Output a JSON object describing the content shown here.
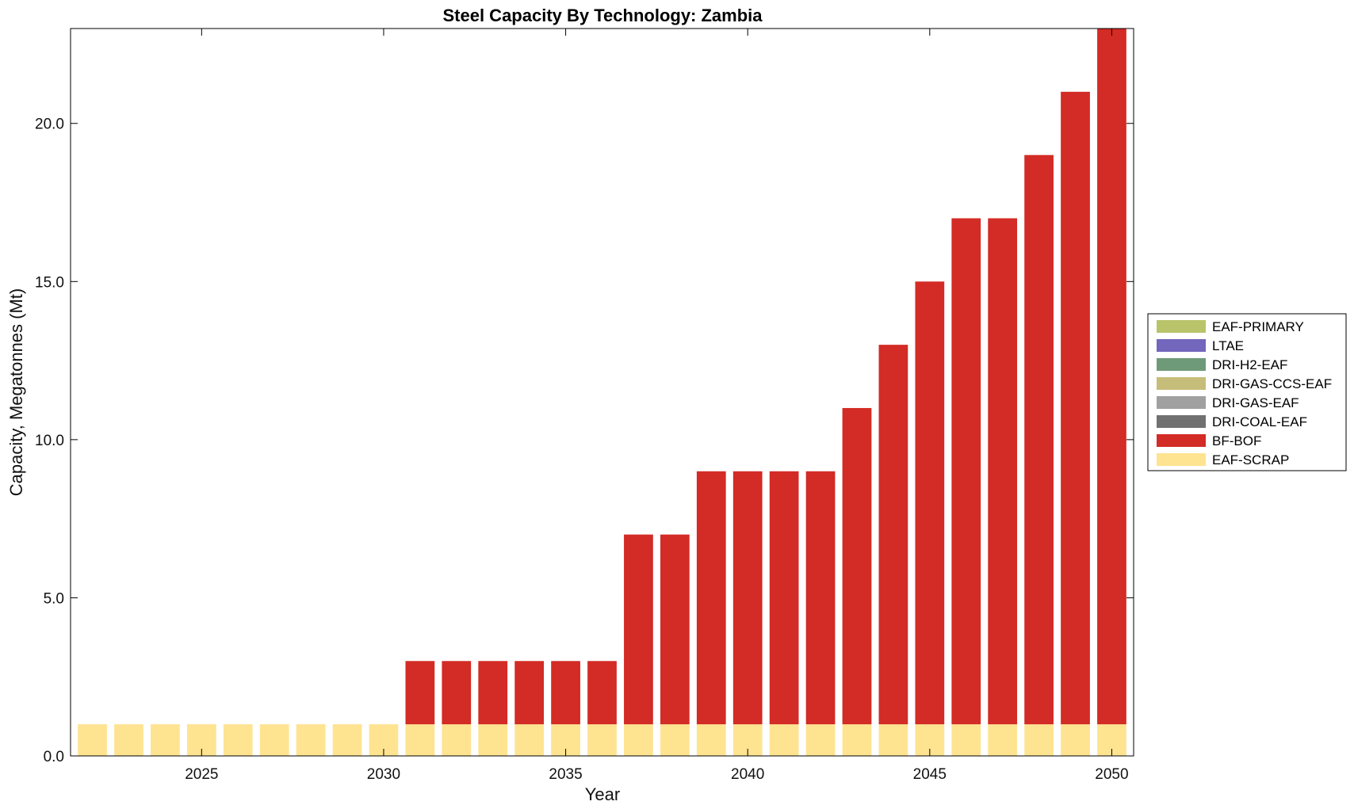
{
  "chart_data": {
    "type": "bar",
    "stacked": true,
    "title": "Steel Capacity By Technology: Zambia",
    "xlabel": "Year",
    "ylabel": "Capacity, Megatonnes (Mt)",
    "x": [
      2022,
      2023,
      2024,
      2025,
      2026,
      2027,
      2028,
      2029,
      2030,
      2031,
      2032,
      2033,
      2034,
      2035,
      2036,
      2037,
      2038,
      2039,
      2040,
      2041,
      2042,
      2043,
      2044,
      2045,
      2046,
      2047,
      2048,
      2049,
      2050
    ],
    "xlim": [
      2021.4,
      2050.6
    ],
    "ylim": [
      0,
      23
    ],
    "xticks": [
      2025,
      2030,
      2035,
      2040,
      2045,
      2050
    ],
    "yticks": [
      0,
      5,
      10,
      15,
      20
    ],
    "ytick_labels": [
      "0.0",
      "5.0",
      "10.0",
      "15.0",
      "20.0"
    ],
    "grid": false,
    "legend_position": "right",
    "series": [
      {
        "name": "EAF-SCRAP",
        "color": "#fee391",
        "values": [
          1,
          1,
          1,
          1,
          1,
          1,
          1,
          1,
          1,
          1,
          1,
          1,
          1,
          1,
          1,
          1,
          1,
          1,
          1,
          1,
          1,
          1,
          1,
          1,
          1,
          1,
          1,
          1,
          1
        ]
      },
      {
        "name": "BF-BOF",
        "color": "#d32b25",
        "values": [
          0,
          0,
          0,
          0,
          0,
          0,
          0,
          0,
          0,
          2,
          2,
          2,
          2,
          2,
          2,
          6,
          6,
          8,
          8,
          8,
          8,
          10,
          12,
          14,
          16,
          16,
          18,
          20,
          22
        ]
      },
      {
        "name": "DRI-COAL-EAF",
        "color": "#707070",
        "values": [
          0,
          0,
          0,
          0,
          0,
          0,
          0,
          0,
          0,
          0,
          0,
          0,
          0,
          0,
          0,
          0,
          0,
          0,
          0,
          0,
          0,
          0,
          0,
          0,
          0,
          0,
          0,
          0,
          0
        ]
      },
      {
        "name": "DRI-GAS-EAF",
        "color": "#a0a0a0",
        "values": [
          0,
          0,
          0,
          0,
          0,
          0,
          0,
          0,
          0,
          0,
          0,
          0,
          0,
          0,
          0,
          0,
          0,
          0,
          0,
          0,
          0,
          0,
          0,
          0,
          0,
          0,
          0,
          0,
          0
        ]
      },
      {
        "name": "DRI-GAS-CCS-EAF",
        "color": "#c7bd7a",
        "values": [
          0,
          0,
          0,
          0,
          0,
          0,
          0,
          0,
          0,
          0,
          0,
          0,
          0,
          0,
          0,
          0,
          0,
          0,
          0,
          0,
          0,
          0,
          0,
          0,
          0,
          0,
          0,
          0,
          0
        ]
      },
      {
        "name": "DRI-H2-EAF",
        "color": "#6f9a79",
        "values": [
          0,
          0,
          0,
          0,
          0,
          0,
          0,
          0,
          0,
          0,
          0,
          0,
          0,
          0,
          0,
          0,
          0,
          0,
          0,
          0,
          0,
          0,
          0,
          0,
          0,
          0,
          0,
          0,
          0
        ]
      },
      {
        "name": "LTAE",
        "color": "#7366bd",
        "values": [
          0,
          0,
          0,
          0,
          0,
          0,
          0,
          0,
          0,
          0,
          0,
          0,
          0,
          0,
          0,
          0,
          0,
          0,
          0,
          0,
          0,
          0,
          0,
          0,
          0,
          0,
          0,
          0,
          0
        ]
      },
      {
        "name": "EAF-PRIMARY",
        "color": "#b9c46a",
        "values": [
          0,
          0,
          0,
          0,
          0,
          0,
          0,
          0,
          0,
          0,
          0,
          0,
          0,
          0,
          0,
          0,
          0,
          0,
          0,
          0,
          0,
          0,
          0,
          0,
          0,
          0,
          0,
          0,
          0
        ]
      }
    ],
    "legend_order": [
      "EAF-PRIMARY",
      "LTAE",
      "DRI-H2-EAF",
      "DRI-GAS-CCS-EAF",
      "DRI-GAS-EAF",
      "DRI-COAL-EAF",
      "BF-BOF",
      "EAF-SCRAP"
    ]
  }
}
